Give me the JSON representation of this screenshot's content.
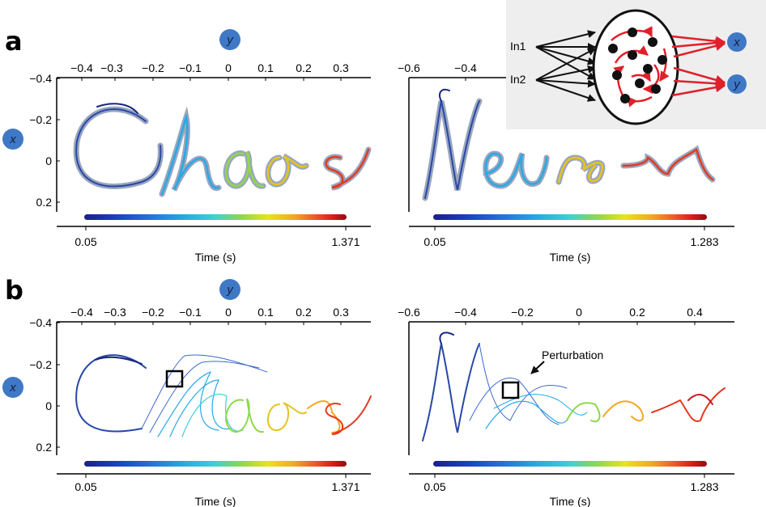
{
  "panels": [
    {
      "letter": "a",
      "plots": [
        {
          "word": "Chaos",
          "x_ticks": [
            "−0.4",
            "−0.3",
            "−0.2",
            "−0.1",
            "0",
            "0.1",
            "0.2",
            "0.3"
          ],
          "y_ticks": [
            "−0.4",
            "−0.2",
            "0",
            "0.2"
          ],
          "time_start": "0.05",
          "time_end": "1.371",
          "time_label": "Time (s)"
        },
        {
          "word": "Neuron",
          "x_ticks": [
            "−0.6",
            "−0.4"
          ],
          "time_start": "0.05",
          "time_end": "1.283",
          "time_label": "Time (s)"
        }
      ]
    },
    {
      "letter": "b",
      "plots": [
        {
          "word": "Chaos",
          "x_ticks": [
            "−0.4",
            "−0.3",
            "−0.2",
            "−0.1",
            "0",
            "0.1",
            "0.2",
            "0.3"
          ],
          "y_ticks": [
            "−0.4",
            "−0.2",
            "0",
            "0.2"
          ],
          "time_start": "0.05",
          "time_end": "1.371",
          "time_label": "Time (s)"
        },
        {
          "word": "Neuron",
          "x_ticks": [
            "−0.6",
            "−0.4",
            "−0.2",
            "0",
            "0.2",
            "0.4"
          ],
          "time_start": "0.05",
          "time_end": "1.283",
          "time_label": "Time (s)",
          "annotation": "Perturbation"
        }
      ]
    }
  ],
  "axis_bubbles": {
    "x": "x",
    "y": "y"
  },
  "network": {
    "inputs": [
      "In1",
      "In2"
    ],
    "outputs": [
      "x",
      "y"
    ],
    "colors": {
      "input_lines": "#111111",
      "recurrent": "#e0202a",
      "output": "#e0202a",
      "node": "#111111",
      "bubble": "#3f79c6"
    }
  },
  "colormap": [
    "#1b1f8c",
    "#1c3fc0",
    "#1e73d9",
    "#27a9e6",
    "#3cd2d0",
    "#8fd84a",
    "#e6e41c",
    "#f5a623",
    "#ee5a24",
    "#d7191c",
    "#8e0e12"
  ]
}
